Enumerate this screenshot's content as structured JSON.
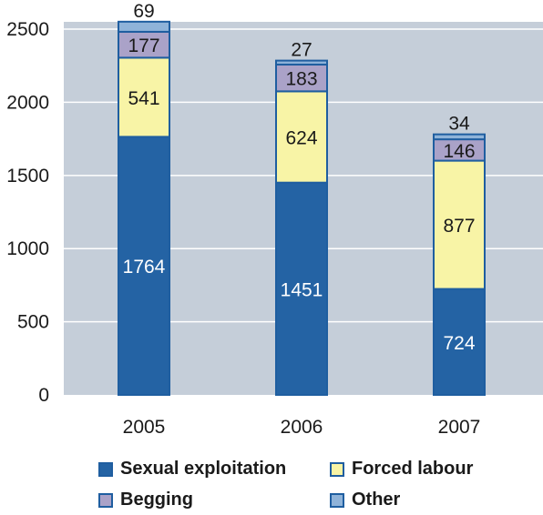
{
  "chart_data": {
    "type": "bar",
    "stacked": true,
    "categories": [
      "2005",
      "2006",
      "2007"
    ],
    "series": [
      {
        "name": "Sexual exploitation",
        "values": [
          1764,
          1451,
          724
        ],
        "color": "#2463a4",
        "label_color": "#ffffff"
      },
      {
        "name": "Forced labour",
        "values": [
          541,
          624,
          877
        ],
        "color": "#f8f4a6",
        "label_color": "#1a1a1a"
      },
      {
        "name": "Begging",
        "values": [
          177,
          183,
          146
        ],
        "color": "#aaa2c8",
        "label_color": "#1a1a1a"
      },
      {
        "name": "Other",
        "values": [
          69,
          27,
          34
        ],
        "color": "#8fb3d9",
        "label_color": "#1a1a1a"
      }
    ],
    "y_ticks": [
      "0",
      "500",
      "1000",
      "1500",
      "2000",
      "2500"
    ],
    "ylim": [
      0,
      2550
    ],
    "plot_background": "#c5ced9",
    "grid": true,
    "bar_outline_color": "#1f5ea0",
    "legend_position": "bottom"
  },
  "legend": {
    "sexual_exploitation": "Sexual exploitation",
    "forced_labour": "Forced labour",
    "begging": "Begging",
    "other": "Other"
  }
}
